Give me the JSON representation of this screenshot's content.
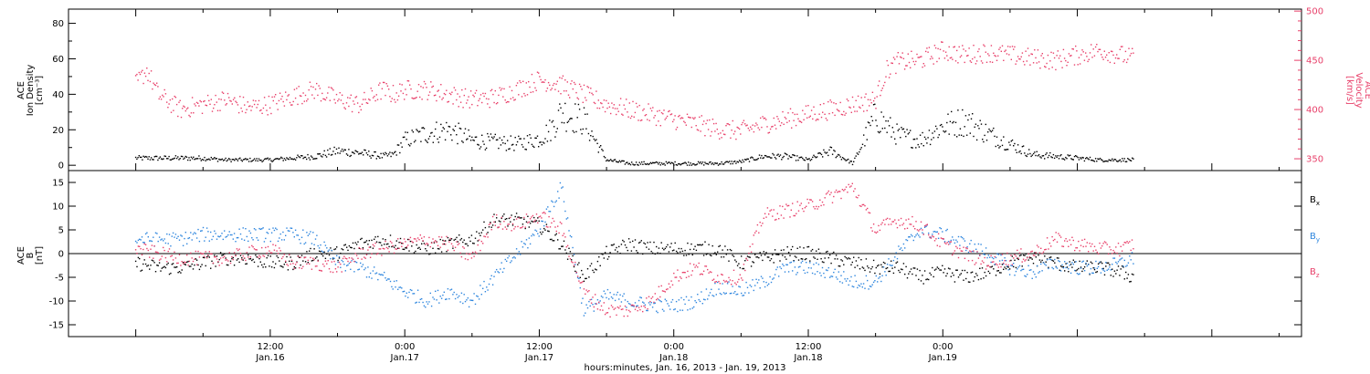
{
  "chart_data": [
    {
      "type": "scatter",
      "panel": "top",
      "ylabel_left": [
        "ACE",
        "Ion Density",
        "[cm⁻³]"
      ],
      "ylabel_right": [
        "ACE",
        "Velocity",
        "[km/s]"
      ],
      "ylim_left": [
        -3,
        88
      ],
      "ylim_right": [
        338,
        502
      ],
      "yticks_left": [
        "0",
        "20",
        "40",
        "60",
        "80"
      ],
      "yticks_right": [
        "350",
        "400",
        "450",
        "500"
      ],
      "series": [
        {
          "axis": "left",
          "color": "#000000",
          "x_hours": [
            0,
            2,
            4,
            6,
            8,
            10,
            12,
            14,
            16,
            18,
            20,
            22,
            23,
            24,
            26,
            28,
            30,
            32,
            34,
            36,
            37,
            38,
            40,
            42,
            44,
            46,
            48,
            50,
            52,
            54,
            56,
            58,
            60,
            62,
            64,
            66,
            67,
            68,
            70,
            72,
            74,
            76,
            78,
            80,
            82,
            84,
            86,
            88,
            89
          ],
          "values": [
            4,
            4,
            4,
            4,
            3,
            3,
            3,
            4,
            5,
            8,
            7,
            5,
            6,
            14,
            18,
            20,
            14,
            13,
            12,
            15,
            20,
            30,
            25,
            3,
            1,
            1,
            1,
            1,
            1,
            2,
            5,
            5,
            3,
            8,
            1,
            28,
            22,
            17,
            14,
            22,
            25,
            18,
            12,
            6,
            5,
            4,
            3,
            3,
            3
          ]
        },
        {
          "axis": "right",
          "color": "#e8406a",
          "x_hours": [
            0,
            1,
            2,
            4,
            6,
            8,
            10,
            12,
            14,
            16,
            18,
            20,
            22,
            23,
            24,
            26,
            28,
            30,
            32,
            34,
            36,
            38,
            40,
            42,
            44,
            46,
            48,
            50,
            52,
            54,
            56,
            58,
            60,
            62,
            64,
            66,
            67,
            68,
            70,
            72,
            74,
            76,
            78,
            80,
            82,
            84,
            86,
            88,
            89
          ],
          "values": [
            425,
            440,
            415,
            400,
            405,
            410,
            402,
            405,
            413,
            420,
            410,
            405,
            420,
            415,
            420,
            420,
            415,
            410,
            412,
            420,
            430,
            425,
            415,
            405,
            400,
            395,
            390,
            385,
            380,
            378,
            385,
            390,
            395,
            400,
            405,
            410,
            440,
            448,
            450,
            460,
            455,
            458,
            455,
            452,
            450,
            455,
            460,
            455,
            452
          ]
        }
      ]
    },
    {
      "type": "scatter",
      "panel": "bottom",
      "ylabel_left": [
        "ACE",
        "B",
        "[nT]"
      ],
      "ylim": [
        -17.5,
        17.5
      ],
      "yticks": [
        "-15",
        "-10",
        "-5",
        "0",
        "5",
        "10",
        "15"
      ],
      "legend": [
        {
          "label": "B",
          "sub": "x",
          "color": "#000000"
        },
        {
          "label": "B",
          "sub": "y",
          "color": "#2e86de"
        },
        {
          "label": "B",
          "sub": "z",
          "color": "#e8406a"
        }
      ],
      "series": [
        {
          "name": "Bx",
          "color": "#000000",
          "x_hours": [
            0,
            2,
            4,
            6,
            8,
            10,
            12,
            14,
            16,
            18,
            20,
            22,
            24,
            26,
            28,
            30,
            32,
            34,
            36,
            38,
            40,
            42,
            44,
            46,
            48,
            50,
            52,
            54,
            56,
            58,
            60,
            62,
            64,
            66,
            68,
            70,
            72,
            74,
            76,
            78,
            80,
            82,
            84,
            86,
            88,
            89
          ],
          "values": [
            -2,
            -3,
            -3,
            -2,
            -1,
            -1,
            -2,
            -2,
            0,
            0,
            2,
            3,
            2,
            1,
            2,
            3,
            7,
            7,
            6,
            2,
            -5,
            0,
            2,
            1,
            1,
            1,
            1,
            -2,
            -1,
            0,
            0,
            -1,
            -2,
            -3,
            -3,
            -5,
            -4,
            -5,
            -4,
            -2,
            -1,
            -2,
            -3,
            -3,
            -4,
            -5
          ]
        },
        {
          "name": "By",
          "color": "#2e86de",
          "x_hours": [
            0,
            2,
            4,
            6,
            8,
            10,
            12,
            14,
            16,
            18,
            20,
            22,
            24,
            26,
            28,
            30,
            32,
            34,
            36,
            37,
            38,
            40,
            42,
            44,
            46,
            48,
            50,
            52,
            54,
            56,
            58,
            60,
            62,
            64,
            66,
            68,
            70,
            72,
            74,
            76,
            78,
            80,
            82,
            84,
            86,
            88,
            89
          ],
          "values": [
            3,
            3,
            3,
            4,
            4,
            4,
            4,
            4,
            3,
            -2,
            -3,
            -5,
            -8,
            -10,
            -8,
            -10,
            -5,
            0,
            5,
            10,
            14,
            -12,
            -9,
            -10,
            -11,
            -11,
            -10,
            -7,
            -8,
            -6,
            -3,
            -3,
            -4,
            -6,
            -6,
            0,
            5,
            4,
            2,
            0,
            -3,
            -4,
            -2,
            -3,
            -3,
            -2,
            -1
          ]
        },
        {
          "name": "Bz",
          "color": "#e8406a",
          "x_hours": [
            0,
            2,
            4,
            6,
            8,
            10,
            12,
            14,
            16,
            18,
            20,
            22,
            24,
            26,
            28,
            30,
            32,
            34,
            36,
            38,
            40,
            42,
            44,
            46,
            48,
            50,
            52,
            54,
            56,
            58,
            60,
            62,
            64,
            66,
            68,
            70,
            72,
            74,
            76,
            78,
            80,
            82,
            84,
            86,
            88,
            89
          ],
          "values": [
            1,
            0,
            -1,
            -1,
            -1,
            0,
            1,
            -2,
            -2,
            -3,
            0,
            1,
            2,
            3,
            2,
            -1,
            7,
            6,
            8,
            5,
            -8,
            -12,
            -12,
            -10,
            -5,
            -3,
            -5,
            -5,
            8,
            9,
            10,
            12,
            14,
            5,
            7,
            6,
            2,
            0,
            -2,
            -1,
            0,
            3,
            2,
            1,
            1,
            2
          ]
        }
      ]
    }
  ],
  "x_axis": {
    "major_ticks": [
      {
        "hour": 12,
        "time": "12:00",
        "date": "Jan.16"
      },
      {
        "hour": 24,
        "time": "0:00",
        "date": "Jan.17"
      },
      {
        "hour": 36,
        "time": "12:00",
        "date": "Jan.17"
      },
      {
        "hour": 48,
        "time": "0:00",
        "date": "Jan.18"
      },
      {
        "hour": 60,
        "time": "12:00",
        "date": "Jan.18"
      },
      {
        "hour": 72,
        "time": "0:00",
        "date": "Jan.19"
      }
    ],
    "xlabel": "hours:minutes, Jan. 16, 2013 - Jan. 19, 2013"
  }
}
